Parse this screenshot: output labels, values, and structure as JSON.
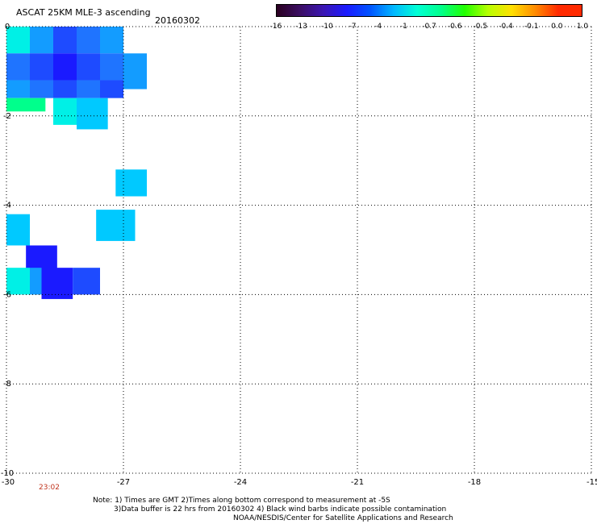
{
  "title": "ASCAT 25KM MLE-3 ascending",
  "date": "20160302",
  "colorbar": {
    "labels": [
      "-16",
      "-13",
      "-10",
      "-7",
      "-4",
      "-1",
      "-0.7",
      "-0.6",
      "-0.5",
      "-0.4",
      "-0.1",
      "0.0",
      "1.0"
    ],
    "colors": [
      "#2a0020",
      "#3b0e63",
      "#3b16b3",
      "#1b1bff",
      "#0055ff",
      "#00b7ff",
      "#00ffd5",
      "#00ff8a",
      "#21ff00",
      "#b7ff00",
      "#ffe000",
      "#ff8c00",
      "#ff2a00"
    ]
  },
  "axes": {
    "x_ticks": [
      "-30",
      "-27",
      "-24",
      "-21",
      "-18",
      "-15"
    ],
    "y_ticks": [
      "0",
      "-2",
      "-4",
      "-6",
      "-8",
      "-10"
    ],
    "x_range": [
      -30,
      -15
    ],
    "y_range": [
      0,
      -10
    ]
  },
  "time_label": "23:02",
  "notes": {
    "line1": "Note: 1) Times are GMT 2)Times along bottom correspond to measurement at -5S",
    "line2": "3)Data buffer is 22 hrs from 20160302 4) Black wind barbs indicate possible contamination",
    "line3": "NOAA/NESDIS/Center for Satellite Applications and Research"
  },
  "palette": {
    "deep_blue": "#1a1aff",
    "blue": "#1e4bff",
    "mid_blue": "#1f74ff",
    "sky": "#139cff",
    "cyan": "#00c9ff",
    "aqua": "#00f0e6",
    "green": "#00ff8c"
  },
  "cells": [
    {
      "lon0": -30,
      "lon1": -29.4,
      "lat0": 0,
      "lat1": -0.6,
      "c": "aqua"
    },
    {
      "lon0": -29.4,
      "lon1": -28.8,
      "lat0": 0,
      "lat1": -0.6,
      "c": "sky"
    },
    {
      "lon0": -28.8,
      "lon1": -28.2,
      "lat0": 0,
      "lat1": -0.6,
      "c": "blue"
    },
    {
      "lon0": -28.2,
      "lon1": -27.6,
      "lat0": 0,
      "lat1": -0.6,
      "c": "mid_blue"
    },
    {
      "lon0": -27.6,
      "lon1": -27.0,
      "lat0": 0,
      "lat1": -0.6,
      "c": "sky"
    },
    {
      "lon0": -30,
      "lon1": -29.4,
      "lat0": -0.6,
      "lat1": -1.2,
      "c": "mid_blue"
    },
    {
      "lon0": -29.4,
      "lon1": -28.8,
      "lat0": -0.6,
      "lat1": -1.2,
      "c": "blue"
    },
    {
      "lon0": -28.8,
      "lon1": -28.2,
      "lat0": -0.6,
      "lat1": -1.2,
      "c": "deep_blue"
    },
    {
      "lon0": -28.2,
      "lon1": -27.6,
      "lat0": -0.6,
      "lat1": -1.2,
      "c": "blue"
    },
    {
      "lon0": -27.6,
      "lon1": -27.0,
      "lat0": -0.6,
      "lat1": -1.2,
      "c": "mid_blue"
    },
    {
      "lon0": -27.0,
      "lon1": -26.4,
      "lat0": -0.6,
      "lat1": -1.4,
      "c": "sky"
    },
    {
      "lon0": -30,
      "lon1": -29.4,
      "lat0": -1.2,
      "lat1": -1.6,
      "c": "sky"
    },
    {
      "lon0": -29.4,
      "lon1": -28.8,
      "lat0": -1.2,
      "lat1": -1.6,
      "c": "mid_blue"
    },
    {
      "lon0": -28.8,
      "lon1": -28.2,
      "lat0": -1.2,
      "lat1": -1.6,
      "c": "blue"
    },
    {
      "lon0": -28.2,
      "lon1": -27.6,
      "lat0": -1.2,
      "lat1": -1.6,
      "c": "mid_blue"
    },
    {
      "lon0": -27.6,
      "lon1": -27.0,
      "lat0": -1.2,
      "lat1": -1.6,
      "c": "blue"
    },
    {
      "lon0": -30,
      "lon1": -29.0,
      "lat0": -1.6,
      "lat1": -1.9,
      "c": "green"
    },
    {
      "lon0": -28.8,
      "lon1": -28.2,
      "lat0": -1.6,
      "lat1": -2.2,
      "c": "aqua"
    },
    {
      "lon0": -28.2,
      "lon1": -27.4,
      "lat0": -1.6,
      "lat1": -2.3,
      "c": "cyan"
    },
    {
      "lon0": -27.2,
      "lon1": -26.4,
      "lat0": -3.2,
      "lat1": -3.8,
      "c": "cyan"
    },
    {
      "lon0": -27.7,
      "lon1": -26.7,
      "lat0": -4.1,
      "lat1": -4.8,
      "c": "cyan"
    },
    {
      "lon0": -30,
      "lon1": -29.4,
      "lat0": -4.2,
      "lat1": -4.9,
      "c": "cyan"
    },
    {
      "lon0": -29.5,
      "lon1": -28.7,
      "lat0": -4.9,
      "lat1": -5.5,
      "c": "deep_blue"
    },
    {
      "lon0": -30,
      "lon1": -29.4,
      "lat0": -5.4,
      "lat1": -6.0,
      "c": "aqua"
    },
    {
      "lon0": -29.4,
      "lon1": -29.1,
      "lat0": -5.4,
      "lat1": -6.0,
      "c": "sky"
    },
    {
      "lon0": -29.1,
      "lon1": -28.3,
      "lat0": -5.4,
      "lat1": -6.1,
      "c": "deep_blue"
    },
    {
      "lon0": -28.3,
      "lon1": -27.6,
      "lat0": -5.4,
      "lat1": -6.0,
      "c": "blue"
    }
  ]
}
